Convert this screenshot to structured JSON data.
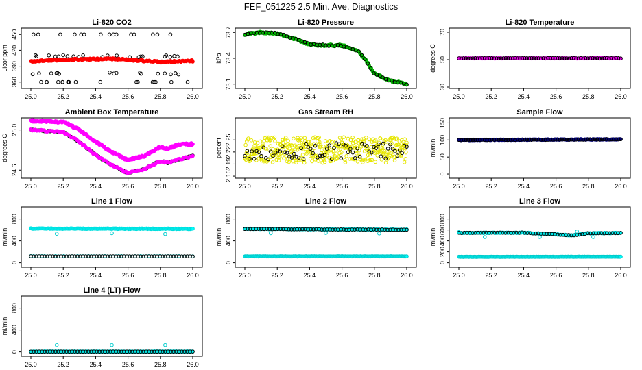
{
  "page": {
    "title": "FEF_051225  2.5 Min. Ave. Diagnostics"
  },
  "chart_data": [
    {
      "id": "co2",
      "type": "scatter",
      "title": "Li-820 CO2",
      "ylabel": "Licor ppm",
      "xlim": [
        25.0,
        26.0
      ],
      "ylim": [
        348,
        462
      ],
      "xticks": [
        "25.0",
        "25.2",
        "25.4",
        "25.6",
        "25.8",
        "26.0"
      ],
      "yticks": [
        360,
        390,
        420,
        450
      ],
      "ytick_labels": [
        "360",
        "390",
        "420",
        "450"
      ],
      "series": [
        {
          "name": "black-open-top",
          "color": "#000000",
          "fill": "none",
          "gen": "sparse",
          "base": 450,
          "spread": 0,
          "n": 15
        },
        {
          "name": "black-open-bottom",
          "color": "#000000",
          "fill": "none",
          "gen": "sparse",
          "base": 360,
          "spread": 0,
          "n": 18
        },
        {
          "name": "black-open-mid",
          "color": "#000000",
          "fill": "none",
          "gen": "sparse",
          "base": 409,
          "spread": 2,
          "n": 22
        },
        {
          "name": "black-open-low",
          "color": "#000000",
          "fill": "none",
          "gen": "sparse",
          "base": 376,
          "spread": 2,
          "n": 16
        },
        {
          "name": "red",
          "color": "#ff0000",
          "fill": "#ff0000",
          "gen": "band",
          "curve": [
            [
              25.0,
              399
            ],
            [
              25.1,
              401
            ],
            [
              25.3,
              403
            ],
            [
              25.5,
              404
            ],
            [
              25.6,
              402
            ],
            [
              25.7,
              400
            ],
            [
              25.8,
              398
            ],
            [
              26.0,
              400
            ]
          ],
          "noise": 1.5,
          "n": 220
        }
      ]
    },
    {
      "id": "pressure",
      "type": "scatter",
      "title": "Li-820 Pressure",
      "ylabel": "kPa",
      "xlim": [
        25.0,
        26.0
      ],
      "ylim": [
        73.05,
        73.75
      ],
      "xticks": [
        "25.0",
        "25.2",
        "25.4",
        "25.6",
        "25.8",
        "26.0"
      ],
      "yticks": [
        73.1,
        73.4,
        73.7
      ],
      "ytick_labels": [
        "73.1",
        "73.4",
        "73.7"
      ],
      "series": [
        {
          "name": "green",
          "color": "#00aa00",
          "fill": "#00cc00",
          "gen": "band",
          "curve": [
            [
              25.0,
              73.68
            ],
            [
              25.1,
              73.7
            ],
            [
              25.2,
              73.69
            ],
            [
              25.3,
              73.63
            ],
            [
              25.4,
              73.56
            ],
            [
              25.5,
              73.55
            ],
            [
              25.6,
              73.55
            ],
            [
              25.7,
              73.49
            ],
            [
              25.75,
              73.37
            ],
            [
              25.8,
              73.22
            ],
            [
              25.9,
              73.14
            ],
            [
              26.0,
              73.1
            ]
          ],
          "noise": 0.01,
          "n": 160
        },
        {
          "name": "black-open",
          "color": "#000000",
          "fill": "none",
          "gen": "band",
          "curve": [
            [
              25.0,
              73.68
            ],
            [
              25.1,
              73.7
            ],
            [
              25.2,
              73.69
            ],
            [
              25.3,
              73.63
            ],
            [
              25.4,
              73.56
            ],
            [
              25.5,
              73.55
            ],
            [
              25.6,
              73.55
            ],
            [
              25.7,
              73.49
            ],
            [
              25.75,
              73.37
            ],
            [
              25.8,
              73.22
            ],
            [
              25.9,
              73.14
            ],
            [
              26.0,
              73.1
            ]
          ],
          "noise": 0.008,
          "n": 55
        }
      ]
    },
    {
      "id": "li820temp",
      "type": "scatter",
      "title": "Li-820 Temperature",
      "ylabel": "degrees C",
      "xlim": [
        25.0,
        26.0
      ],
      "ylim": [
        29,
        73
      ],
      "xticks": [
        "25.0",
        "25.2",
        "25.4",
        "25.6",
        "25.8",
        "26.0"
      ],
      "yticks": [
        30,
        50,
        70
      ],
      "ytick_labels": [
        "30",
        "50",
        "70"
      ],
      "series": [
        {
          "name": "magenta",
          "color": "#ff00ff",
          "fill": "#ff00ff",
          "gen": "band",
          "curve": [
            [
              25.0,
              51
            ],
            [
              26.0,
              51
            ]
          ],
          "noise": 0.2,
          "n": 160
        },
        {
          "name": "black-open",
          "color": "#000000",
          "fill": "none",
          "gen": "band",
          "curve": [
            [
              25.0,
              51
            ],
            [
              26.0,
              51
            ]
          ],
          "noise": 0.15,
          "n": 70
        }
      ]
    },
    {
      "id": "ambient",
      "type": "scatter",
      "title": "Ambient Box Temperature",
      "ylabel": "degrees C",
      "xlim": [
        25.0,
        26.0
      ],
      "ylim": [
        24.52,
        25.12
      ],
      "xticks": [
        "25.0",
        "25.2",
        "25.4",
        "25.6",
        "25.8",
        "26.0"
      ],
      "yticks": [
        24.6,
        25.0
      ],
      "ytick_labels": [
        "24.6",
        "25.0"
      ],
      "series": [
        {
          "name": "magenta",
          "color": "#ff00ff",
          "fill": "#ff00ff",
          "gen": "band",
          "curve": [
            [
              25.0,
              25.09
            ],
            [
              25.2,
              25.08
            ],
            [
              25.3,
              25.0
            ],
            [
              25.4,
              24.88
            ],
            [
              25.5,
              24.78
            ],
            [
              25.6,
              24.7
            ],
            [
              25.7,
              24.74
            ],
            [
              25.8,
              24.83
            ],
            [
              25.85,
              24.81
            ],
            [
              25.9,
              24.85
            ],
            [
              26.0,
              24.86
            ]
          ],
          "noise": 0.01,
          "n": 230
        },
        {
          "name": "black-open",
          "color": "#000000",
          "fill": "none",
          "gen": "band",
          "curve": [
            [
              25.0,
              25.0
            ],
            [
              25.2,
              24.98
            ],
            [
              25.3,
              24.88
            ],
            [
              25.4,
              24.75
            ],
            [
              25.5,
              24.65
            ],
            [
              25.6,
              24.57
            ],
            [
              25.7,
              24.61
            ],
            [
              25.8,
              24.69
            ],
            [
              25.85,
              24.67
            ],
            [
              25.9,
              24.7
            ],
            [
              26.0,
              24.74
            ]
          ],
          "noise": 0.006,
          "n": 85
        },
        {
          "name": "magenta-lower",
          "color": "#ff00ff",
          "fill": "#ff00ff",
          "gen": "band",
          "curve": [
            [
              25.0,
              25.0
            ],
            [
              25.2,
              24.98
            ],
            [
              25.3,
              24.88
            ],
            [
              25.4,
              24.75
            ],
            [
              25.5,
              24.65
            ],
            [
              25.6,
              24.57
            ],
            [
              25.7,
              24.61
            ],
            [
              25.8,
              24.69
            ],
            [
              25.85,
              24.67
            ],
            [
              25.9,
              24.7
            ],
            [
              26.0,
              24.74
            ]
          ],
          "noise": 0.008,
          "n": 110
        }
      ]
    },
    {
      "id": "rh",
      "type": "scatter",
      "title": "Gas Stream RH",
      "ylabel": "percent",
      "xlim": [
        25.0,
        26.0
      ],
      "ylim": [
        2.155,
        2.305
      ],
      "xticks": [
        "25.0",
        "25.2",
        "25.4",
        "25.6",
        "25.8",
        "26.0"
      ],
      "yticks": [
        2.16,
        2.19,
        2.22,
        2.25
      ],
      "ytick_labels": [
        "2.16",
        "2.19",
        "2.22",
        "2.25"
      ],
      "series": [
        {
          "name": "yellow",
          "color": "#e6e600",
          "fill": "none",
          "gen": "scatter",
          "center": 2.225,
          "spread": 0.032,
          "n": 420
        },
        {
          "name": "black-open",
          "color": "#000000",
          "fill": "none",
          "gen": "scatter",
          "center": 2.222,
          "spread": 0.02,
          "n": 70
        }
      ]
    },
    {
      "id": "sample",
      "type": "scatter",
      "title": "Sample Flow",
      "ylabel": "ml/min",
      "xlim": [
        25.0,
        26.0
      ],
      "ylim": [
        -12,
        165
      ],
      "xticks": [
        "25.0",
        "25.2",
        "25.4",
        "25.6",
        "25.8",
        "26.0"
      ],
      "yticks": [
        0,
        50,
        100,
        150
      ],
      "ytick_labels": [
        "0",
        "50",
        "100",
        "150"
      ],
      "series": [
        {
          "name": "navy",
          "color": "#000080",
          "fill": "#000080",
          "gen": "band",
          "curve": [
            [
              25.0,
              100
            ],
            [
              26.0,
              102
            ]
          ],
          "noise": 1.2,
          "n": 200
        },
        {
          "name": "black-open",
          "color": "#000000",
          "fill": "none",
          "gen": "band",
          "curve": [
            [
              25.0,
              100
            ],
            [
              26.0,
              102
            ]
          ],
          "noise": 1,
          "n": 70
        }
      ]
    },
    {
      "id": "line1",
      "type": "scatter",
      "title": "Line 1 Flow",
      "ylabel": "ml/min",
      "xlim": [
        25.0,
        26.0
      ],
      "ylim": [
        -80,
        1020
      ],
      "xticks": [
        "25.0",
        "25.2",
        "25.4",
        "25.6",
        "25.8",
        "26.0"
      ],
      "yticks": [
        0,
        400,
        800
      ],
      "ytick_labels": [
        "0",
        "400",
        "800"
      ],
      "series": [
        {
          "name": "cyan-high",
          "color": "#00dddd",
          "fill": "#00ffff",
          "gen": "band",
          "curve": [
            [
              25.0,
              625
            ],
            [
              26.0,
              620
            ]
          ],
          "noise": 6,
          "n": 180
        },
        {
          "name": "cyan-low",
          "color": "#00cccc",
          "fill": "none",
          "gen": "band",
          "curve": [
            [
              25.0,
              120
            ],
            [
              26.0,
              120
            ]
          ],
          "noise": 3,
          "n": 60
        },
        {
          "name": "black-open",
          "color": "#000000",
          "fill": "none",
          "gen": "band",
          "curve": [
            [
              25.0,
              118
            ],
            [
              26.0,
              118
            ]
          ],
          "noise": 2,
          "n": 60
        },
        {
          "name": "cyan-outliers",
          "color": "#00cccc",
          "fill": "none",
          "gen": "points",
          "points": [
            [
              25.16,
              530
            ],
            [
              25.5,
              540
            ],
            [
              25.83,
              525
            ]
          ]
        }
      ]
    },
    {
      "id": "line2",
      "type": "scatter",
      "title": "Line 2 Flow",
      "ylabel": "ml/min",
      "xlim": [
        25.0,
        26.0
      ],
      "ylim": [
        -80,
        1020
      ],
      "xticks": [
        "25.0",
        "25.2",
        "25.4",
        "25.6",
        "25.8",
        "26.0"
      ],
      "yticks": [
        0,
        400,
        800
      ],
      "ytick_labels": [
        "0",
        "400",
        "800"
      ],
      "series": [
        {
          "name": "cyan-high",
          "color": "#00dddd",
          "fill": "#00ffff",
          "gen": "band",
          "curve": [
            [
              25.0,
              620
            ],
            [
              25.5,
              610
            ],
            [
              26.0,
              605
            ]
          ],
          "noise": 6,
          "n": 150
        },
        {
          "name": "black-open",
          "color": "#000000",
          "fill": "none",
          "gen": "band",
          "curve": [
            [
              25.0,
              618
            ],
            [
              25.5,
              608
            ],
            [
              26.0,
              603
            ]
          ],
          "noise": 4,
          "n": 60
        },
        {
          "name": "cyan-low",
          "color": "#00cccc",
          "fill": "#00ffff",
          "gen": "band",
          "curve": [
            [
              25.0,
              118
            ],
            [
              26.0,
              118
            ]
          ],
          "noise": 3,
          "n": 180
        },
        {
          "name": "cyan-outliers",
          "color": "#00cccc",
          "fill": "none",
          "gen": "points",
          "points": [
            [
              25.16,
              540
            ],
            [
              25.5,
              545
            ],
            [
              25.83,
              535
            ]
          ]
        }
      ]
    },
    {
      "id": "line3",
      "type": "scatter",
      "title": "Line 3 Flow",
      "ylabel": "ml/min",
      "xlim": [
        25.0,
        26.0
      ],
      "ylim": [
        -80,
        1020
      ],
      "xticks": [
        "25.0",
        "25.2",
        "25.4",
        "25.6",
        "25.8",
        "26.0"
      ],
      "yticks": [
        0,
        200,
        400,
        600,
        800
      ],
      "ytick_labels": [
        "0",
        "200",
        "400",
        "600",
        "800"
      ],
      "series": [
        {
          "name": "cyan-high",
          "color": "#00dddd",
          "fill": "#00ffff",
          "gen": "band",
          "curve": [
            [
              25.0,
              545
            ],
            [
              25.4,
              550
            ],
            [
              25.6,
              520
            ],
            [
              25.7,
              500
            ],
            [
              25.8,
              540
            ],
            [
              26.0,
              545
            ]
          ],
          "noise": 6,
          "n": 150
        },
        {
          "name": "black-open",
          "color": "#000000",
          "fill": "none",
          "gen": "band",
          "curve": [
            [
              25.0,
              545
            ],
            [
              25.4,
              550
            ],
            [
              25.6,
              520
            ],
            [
              25.7,
              500
            ],
            [
              25.8,
              540
            ],
            [
              26.0,
              545
            ]
          ],
          "noise": 5,
          "n": 60
        },
        {
          "name": "cyan-low",
          "color": "#00cccc",
          "fill": "#00ffff",
          "gen": "band",
          "curve": [
            [
              25.0,
              110
            ],
            [
              26.0,
              112
            ]
          ],
          "noise": 3,
          "n": 180
        },
        {
          "name": "cyan-outliers",
          "color": "#00cccc",
          "fill": "none",
          "gen": "points",
          "points": [
            [
              25.0,
              560
            ],
            [
              25.16,
              470
            ],
            [
              25.5,
              470
            ],
            [
              25.73,
              570
            ],
            [
              25.83,
              470
            ]
          ]
        }
      ]
    },
    {
      "id": "line4",
      "type": "scatter",
      "title": "Line 4 (LT) Flow",
      "ylabel": "ml/min",
      "xlim": [
        25.0,
        26.0
      ],
      "ylim": [
        -80,
        1020
      ],
      "xticks": [
        "25.0",
        "25.2",
        "25.4",
        "25.6",
        "25.8",
        "26.0"
      ],
      "yticks": [
        0,
        400,
        800
      ],
      "ytick_labels": [
        "0",
        "400",
        "800"
      ],
      "series": [
        {
          "name": "cyan-base",
          "color": "#00dddd",
          "fill": "#00ffff",
          "gen": "band",
          "curve": [
            [
              25.0,
              6
            ],
            [
              26.0,
              6
            ]
          ],
          "noise": 2,
          "n": 180
        },
        {
          "name": "black-open",
          "color": "#000000",
          "fill": "none",
          "gen": "band",
          "curve": [
            [
              25.0,
              5
            ],
            [
              26.0,
              5
            ]
          ],
          "noise": 1,
          "n": 60
        },
        {
          "name": "cyan-outliers",
          "color": "#00cccc",
          "fill": "none",
          "gen": "points",
          "points": [
            [
              25.16,
              125
            ],
            [
              25.5,
              125
            ],
            [
              25.83,
              125
            ]
          ]
        }
      ]
    }
  ]
}
